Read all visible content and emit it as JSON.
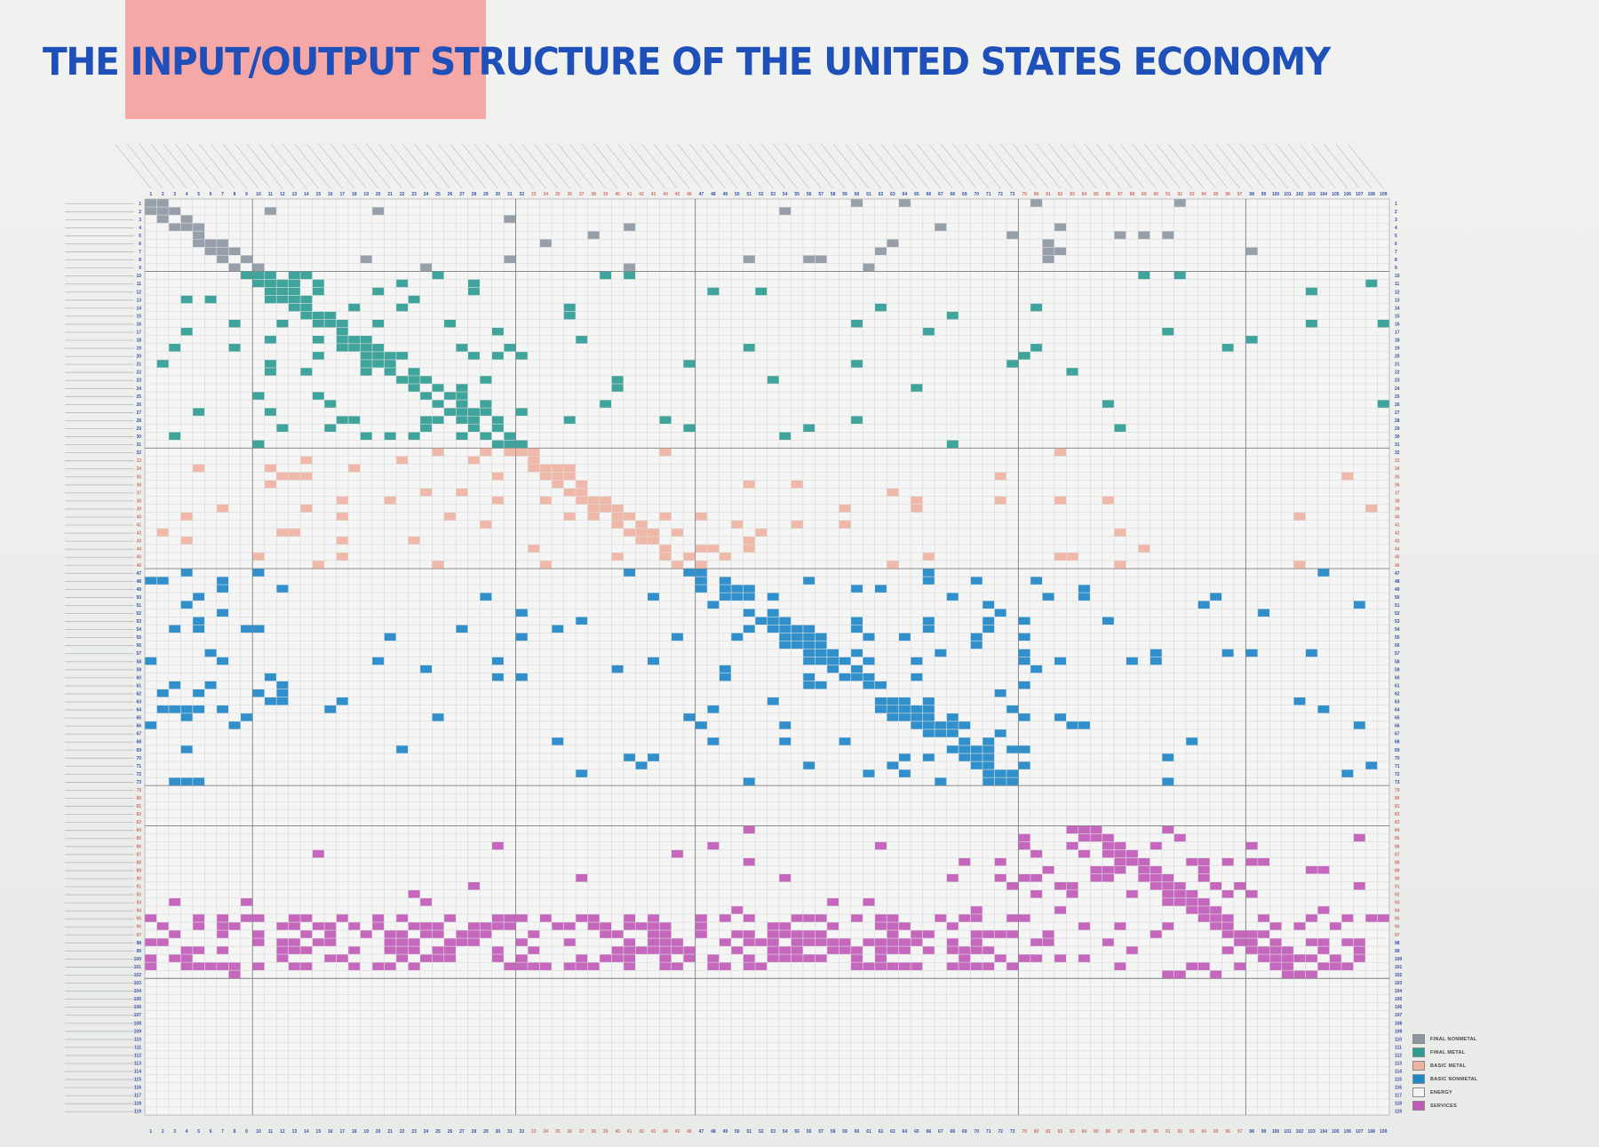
{
  "poster": {
    "title": "THE INPUT/OUTPUT STRUCTURE OF THE UNITED STATES ECONOMY"
  },
  "colors": {
    "background": "#eceeec",
    "title": "#1f4fb8",
    "title_highlight": "#f6a8a6",
    "grid": "#c4c8c4",
    "index_default": "#3550a8",
    "index_alt": "#d0746a"
  },
  "legend": [
    {
      "label": "FINAL NONMETAL",
      "color": "#8d97a3"
    },
    {
      "label": "FINAL METAL",
      "color": "#2f9c93"
    },
    {
      "label": "BASIC METAL",
      "color": "#efb2a2"
    },
    {
      "label": "BASIC NONMETAL",
      "color": "#1f87c7"
    },
    {
      "label": "ENERGY",
      "color": "#f2f3f2"
    },
    {
      "label": "SERVICES",
      "color": "#c15ab8"
    }
  ],
  "chart_data": {
    "type": "heatmap",
    "title": "THE INPUT/OUTPUT STRUCTURE OF THE UNITED STATES ECONOMY",
    "xlabel": "",
    "ylabel": "",
    "columns": [
      1,
      2,
      3,
      4,
      5,
      6,
      7,
      8,
      9,
      10,
      11,
      12,
      13,
      14,
      15,
      16,
      17,
      18,
      19,
      20,
      21,
      22,
      23,
      24,
      25,
      26,
      27,
      28,
      29,
      30,
      31,
      32,
      33,
      34,
      35,
      36,
      37,
      38,
      39,
      40,
      41,
      42,
      43,
      44,
      45,
      46,
      47,
      48,
      49,
      50,
      51,
      52,
      53,
      54,
      55,
      56,
      57,
      58,
      59,
      60,
      61,
      62,
      63,
      64,
      65,
      66,
      67,
      68,
      69,
      70,
      71,
      72,
      73,
      79,
      80,
      81,
      82,
      83,
      84,
      85,
      86,
      87,
      88,
      89,
      90,
      91,
      92,
      93,
      94,
      95,
      96,
      97,
      98,
      99,
      100,
      101,
      102,
      103,
      104,
      105,
      106,
      107,
      108,
      109
    ],
    "rows": [
      1,
      2,
      3,
      4,
      5,
      6,
      7,
      8,
      9,
      10,
      11,
      12,
      13,
      14,
      15,
      16,
      17,
      18,
      19,
      20,
      21,
      22,
      23,
      24,
      25,
      26,
      27,
      28,
      29,
      30,
      31,
      32,
      33,
      34,
      35,
      36,
      37,
      38,
      39,
      40,
      41,
      42,
      43,
      44,
      45,
      46,
      47,
      48,
      49,
      50,
      51,
      52,
      53,
      54,
      55,
      56,
      57,
      58,
      59,
      60,
      61,
      62,
      63,
      64,
      65,
      66,
      67,
      68,
      69,
      70,
      71,
      72,
      73,
      79,
      80,
      81,
      82,
      83,
      84,
      85,
      86,
      87,
      88,
      89,
      90,
      91,
      92,
      93,
      94,
      95,
      96,
      97,
      98,
      99,
      100,
      101,
      102,
      103,
      104,
      105,
      106,
      107,
      108,
      109,
      110,
      111,
      112,
      113,
      114,
      115,
      116,
      117,
      118,
      119
    ],
    "sector_groups": [
      {
        "name": "FINAL NONMETAL",
        "rows": [
          1,
          9
        ],
        "color": "#8d97a3"
      },
      {
        "name": "FINAL METAL",
        "rows": [
          10,
          31
        ],
        "color": "#2f9c93"
      },
      {
        "name": "BASIC METAL",
        "rows": [
          32,
          46
        ],
        "color": "#efb2a2"
      },
      {
        "name": "BASIC NONMETAL",
        "rows": [
          47,
          73
        ],
        "color": "#1f87c7"
      },
      {
        "name": "ENERGY",
        "rows": [
          74,
          78
        ],
        "color": "#f2f3f2"
      },
      {
        "name": "SERVICES",
        "rows": [
          79,
          97
        ],
        "color": "#c15ab8"
      }
    ],
    "value_description": "Each cell is an interindustry transaction; cells are shaded in the color of the supplying sector group when the transaction is large. Individual cell values are printed too small to be legible at this resolution."
  }
}
